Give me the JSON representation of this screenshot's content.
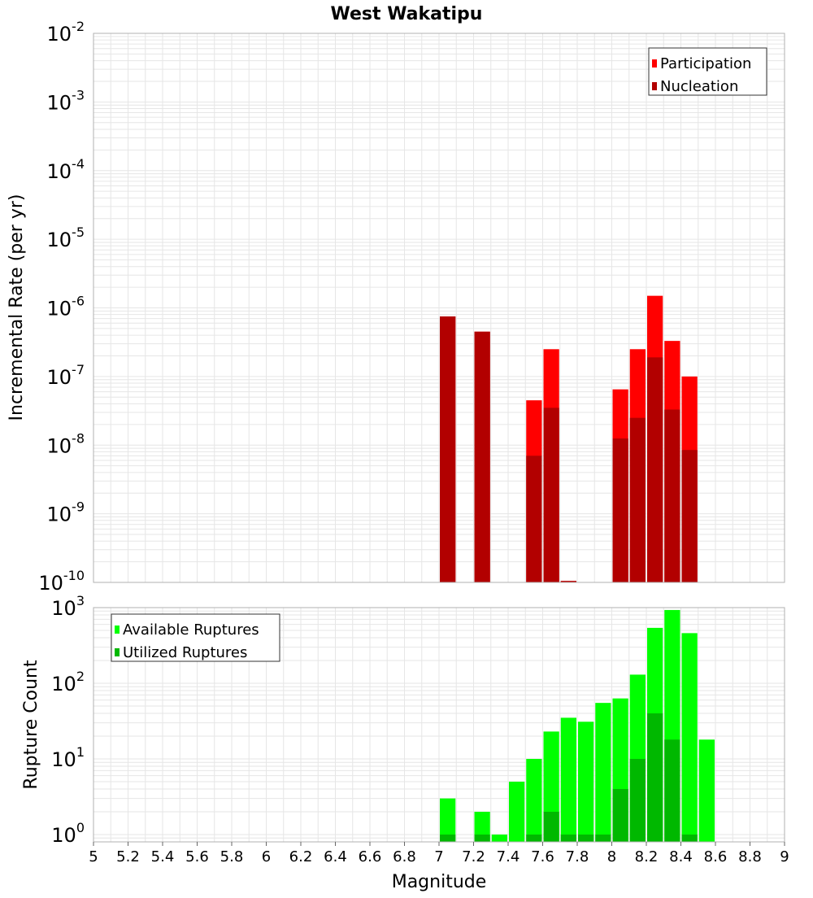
{
  "title": "West Wakatipu",
  "xlabel": "Magnitude",
  "colors": {
    "participation": "#ff0000",
    "nucleation": "#b20000",
    "available": "#00ff00",
    "utilized": "#00b800",
    "grid": "#e6e6e6",
    "frame": "#b0b0b0"
  },
  "chart_data": [
    {
      "type": "bar",
      "panel": "top",
      "ylabel": "Incremental Rate (per yr)",
      "yscale": "log",
      "ylim": [
        1e-10,
        0.01
      ],
      "xlim": [
        5,
        9
      ],
      "bin_width": 0.1,
      "y_ticks": [
        {
          "base": "10",
          "exp": "-2",
          "value": 0.01
        },
        {
          "base": "10",
          "exp": "-3",
          "value": 0.001
        },
        {
          "base": "10",
          "exp": "-4",
          "value": 0.0001
        },
        {
          "base": "10",
          "exp": "-5",
          "value": 1e-05
        },
        {
          "base": "10",
          "exp": "-6",
          "value": 1e-06
        },
        {
          "base": "10",
          "exp": "-7",
          "value": 1e-07
        },
        {
          "base": "10",
          "exp": "-8",
          "value": 1e-08
        },
        {
          "base": "10",
          "exp": "-9",
          "value": 1e-09
        },
        {
          "base": "10",
          "exp": "-10",
          "value": 1e-10
        }
      ],
      "legend": {
        "placement": "top-right",
        "entries": [
          "Participation",
          "Nucleation"
        ]
      },
      "series": [
        {
          "name": "Participation",
          "x": [
            7.05,
            7.25,
            7.55,
            7.65,
            7.75,
            8.05,
            8.15,
            8.25,
            8.35,
            8.45
          ],
          "values": [
            7.5e-07,
            4.5e-07,
            4.5e-08,
            2.5e-07,
            1.05e-10,
            6.5e-08,
            2.5e-07,
            1.5e-06,
            3.3e-07,
            1e-07
          ]
        },
        {
          "name": "Nucleation",
          "x": [
            7.05,
            7.25,
            7.55,
            7.65,
            7.75,
            8.05,
            8.15,
            8.25,
            8.35,
            8.45
          ],
          "values": [
            7.5e-07,
            4.5e-07,
            7e-09,
            3.5e-08,
            1.05e-10,
            1.25e-08,
            2.5e-08,
            1.9e-07,
            3.3e-08,
            8.5e-09
          ]
        }
      ]
    },
    {
      "type": "bar",
      "panel": "bottom",
      "ylabel": "Rupture Count",
      "yscale": "log",
      "ylim": [
        0.8,
        1000
      ],
      "xlim": [
        5,
        9
      ],
      "bin_width": 0.1,
      "x_ticks": [
        "5",
        "5.2",
        "5.4",
        "5.6",
        "5.8",
        "6",
        "6.2",
        "6.4",
        "6.6",
        "6.8",
        "7",
        "7.2",
        "7.4",
        "7.6",
        "7.8",
        "8",
        "8.2",
        "8.4",
        "8.6",
        "8.8",
        "9"
      ],
      "y_ticks": [
        {
          "base": "10",
          "exp": "3",
          "value": 1000
        },
        {
          "base": "10",
          "exp": "2",
          "value": 100
        },
        {
          "base": "10",
          "exp": "1",
          "value": 10
        },
        {
          "base": "10",
          "exp": "0",
          "value": 1
        }
      ],
      "legend": {
        "placement": "top-left",
        "entries": [
          "Available Ruptures",
          "Utilized Ruptures"
        ]
      },
      "series": [
        {
          "name": "Available Ruptures",
          "x": [
            7.05,
            7.25,
            7.35,
            7.45,
            7.55,
            7.65,
            7.75,
            7.85,
            7.95,
            8.05,
            8.15,
            8.25,
            8.35,
            8.45,
            8.55
          ],
          "values": [
            3,
            2,
            1,
            5,
            10,
            23,
            35,
            31,
            55,
            63,
            130,
            540,
            930,
            460,
            18
          ]
        },
        {
          "name": "Utilized Ruptures",
          "x": [
            7.05,
            7.25,
            7.55,
            7.65,
            7.75,
            7.85,
            7.95,
            8.05,
            8.15,
            8.25,
            8.35,
            8.45
          ],
          "values": [
            1,
            1,
            1,
            2,
            1,
            1,
            1,
            4,
            10,
            40,
            18,
            1
          ]
        }
      ]
    }
  ]
}
